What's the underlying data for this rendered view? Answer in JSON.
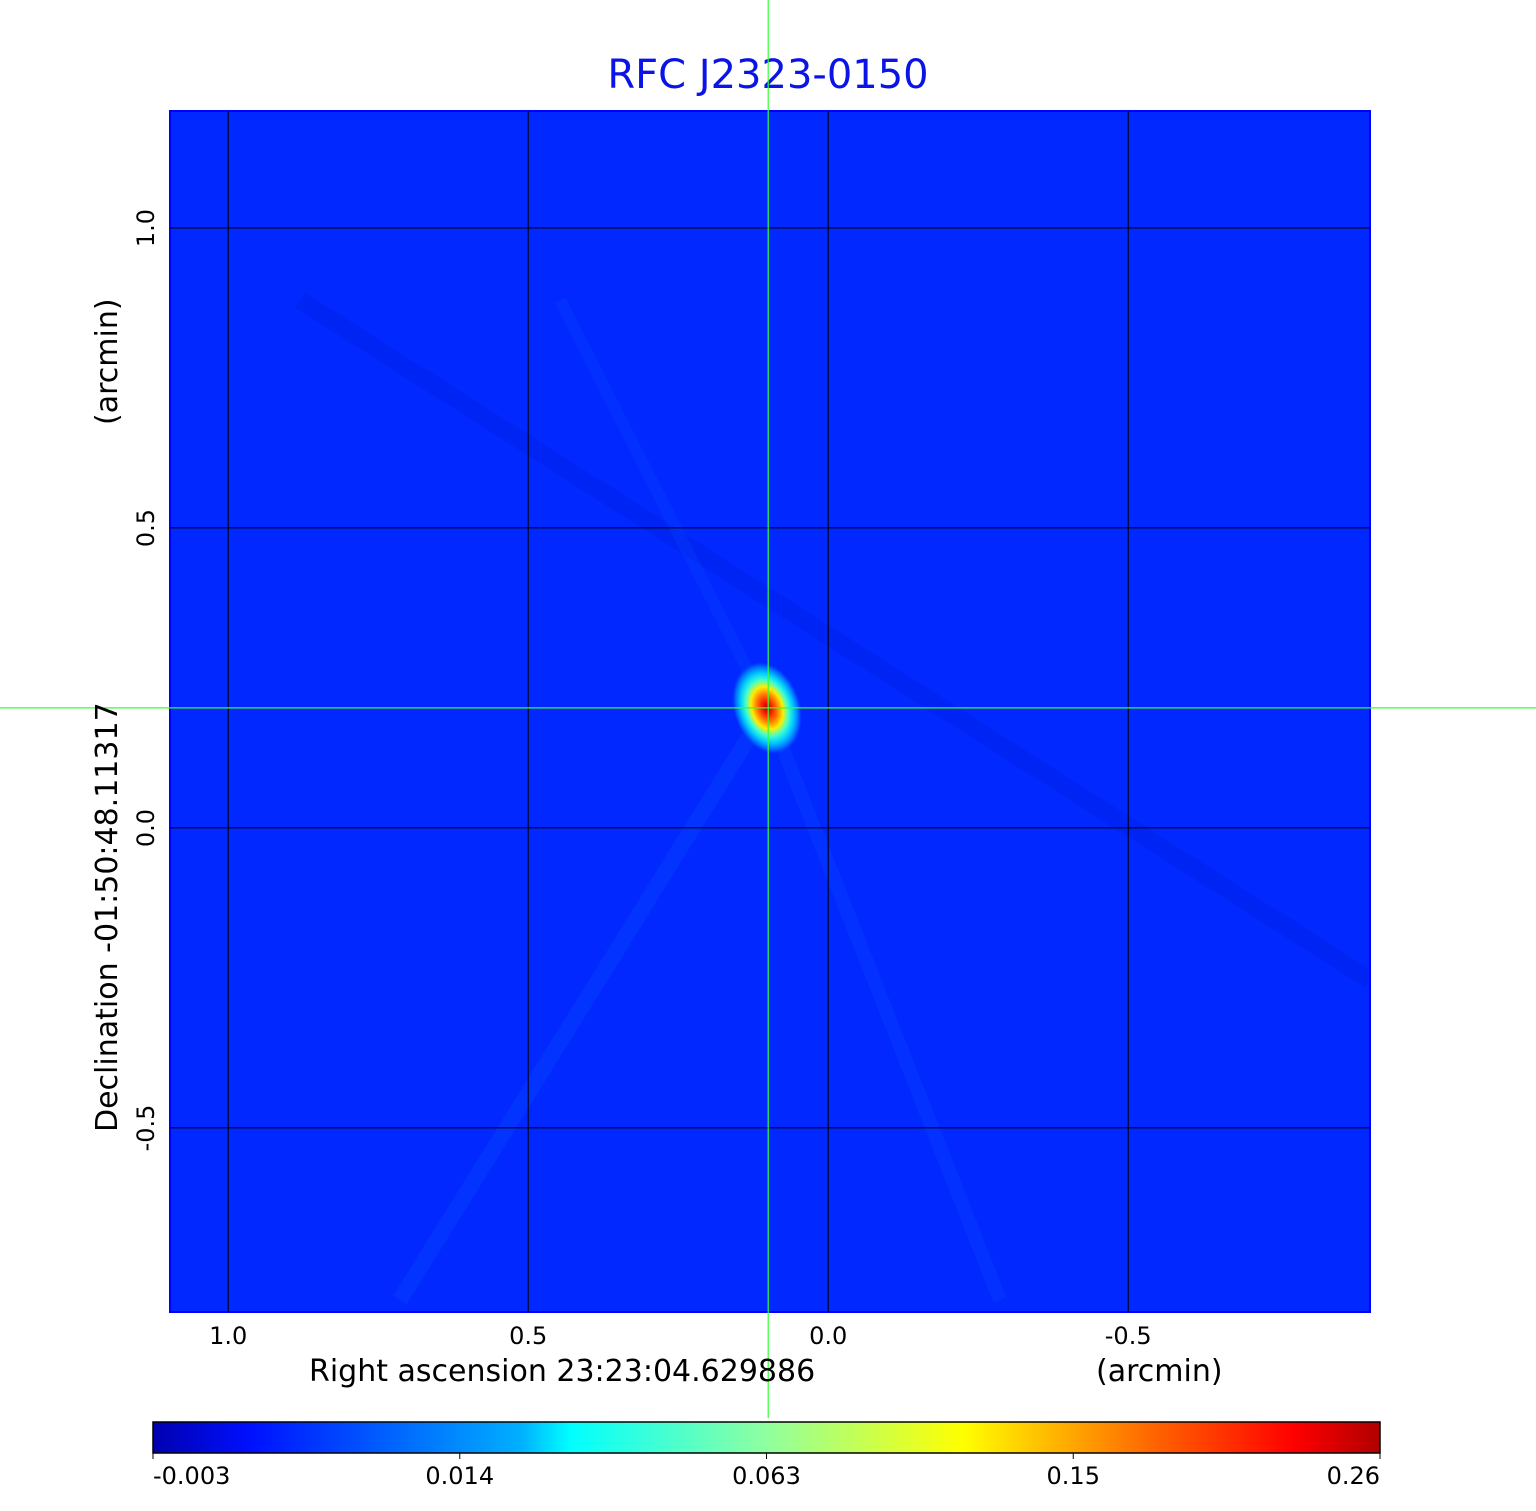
{
  "chart_data": {
    "type": "heatmap",
    "title": "RFC J2323-0150",
    "xlabel": "Right ascension  23:23:04.629886",
    "xunit": "(arcmin)",
    "ylabel": "Declination  -01:50:48.11317",
    "yunit": "(arcmin)",
    "xlim": [
      1.097,
      -0.903
    ],
    "ylim": [
      -0.807,
      1.195
    ],
    "xticks": [
      "1.0",
      "0.5",
      "0.0",
      "-0.5"
    ],
    "xtick_values": [
      1.0,
      0.5,
      0.0,
      -0.5
    ],
    "yticks": [
      "1.0",
      "0.5",
      "0.0",
      "-0.5"
    ],
    "ytick_values": [
      1.0,
      0.5,
      0.0,
      -0.5
    ],
    "grid": true,
    "colormap": "jet",
    "background_color": "#0028ff",
    "title_color": "#0a14e6",
    "crosshair_color": "#33ff33",
    "crosshair": {
      "x": 0.1,
      "y": 0.2
    },
    "peak": {
      "x": 0.1,
      "y": 0.2,
      "value": 0.26
    },
    "colorbar": {
      "ticks": [
        "-0.003",
        "0.014",
        "0.063",
        "0.15",
        "0.26"
      ],
      "range": [
        -0.003,
        0.26
      ],
      "placement": "bottom"
    }
  }
}
